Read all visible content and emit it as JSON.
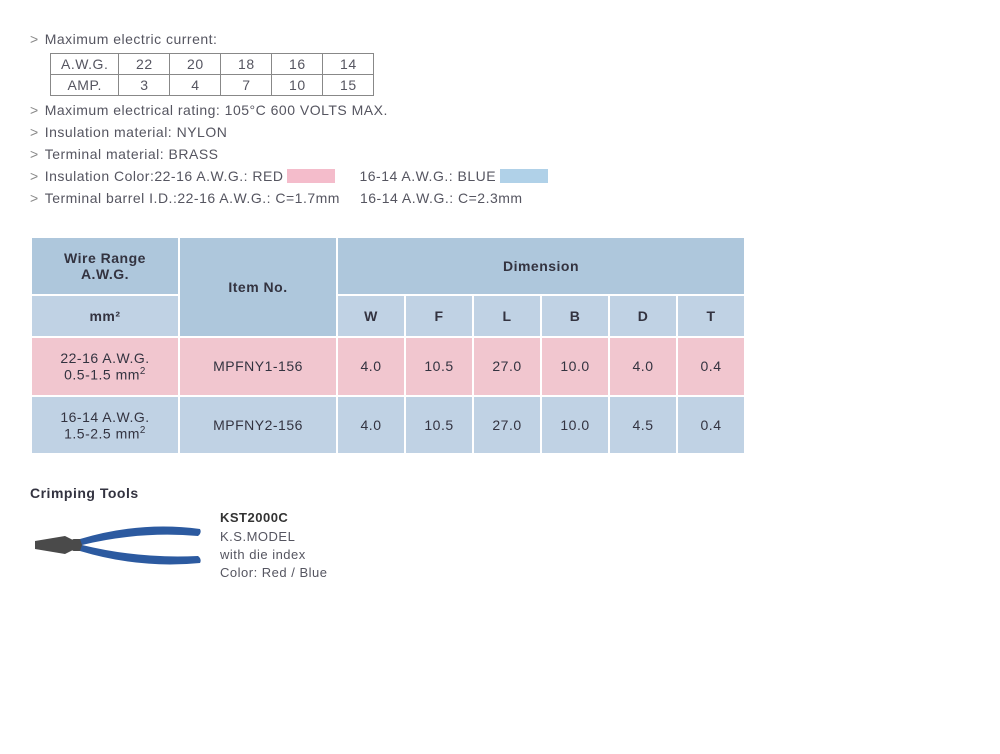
{
  "specs": {
    "max_current_label": "Maximum electric current:",
    "current_table": {
      "row1_label": "A.W.G.",
      "row1": [
        "22",
        "20",
        "18",
        "16",
        "14"
      ],
      "row2_label": "AMP.",
      "row2": [
        "3",
        "4",
        "7",
        "10",
        "15"
      ]
    },
    "rating": "Maximum electrical rating: 105°C 600 VOLTS MAX.",
    "insulation_mat": "Insulation material: NYLON",
    "terminal_mat": "Terminal material: BRASS",
    "ins_color_label": "Insulation Color: ",
    "ins_color_a": "22-16 A.W.G.: RED",
    "ins_color_b": "16-14 A.W.G.: BLUE",
    "swatch_red": "#f4bccb",
    "swatch_blue": "#b0d1e8",
    "barrel_label": "Terminal barrel I.D.: ",
    "barrel_a": "22-16 A.W.G.: C=1.7mm",
    "barrel_b": "16-14 A.W.G.: C=2.3mm"
  },
  "dim": {
    "headers": {
      "wire_range": "Wire Range A.W.G.",
      "item_no": "Item No.",
      "dimension": "Dimension",
      "mm2": "mm²",
      "cols": [
        "W",
        "F",
        "L",
        "B",
        "D",
        "T"
      ]
    },
    "rows": [
      {
        "wr1": "22-16 A.W.G.",
        "wr2": "0.5-1.5 mm²",
        "item": "MPFNY1-156",
        "vals": [
          "4.0",
          "10.5",
          "27.0",
          "10.0",
          "4.0",
          "0.4"
        ],
        "rowClass": "row-pink"
      },
      {
        "wr1": "16-14 A.W.G.",
        "wr2": "1.5-2.5 mm²",
        "item": "MPFNY2-156",
        "vals": [
          "4.0",
          "10.5",
          "27.0",
          "10.0",
          "4.5",
          "0.4"
        ],
        "rowClass": "row-blue"
      }
    ]
  },
  "tools": {
    "title": "Crimping Tools",
    "model": "KST2000C",
    "line1": "K.S.MODEL",
    "line2": "with die index",
    "line3": "Color: Red / Blue",
    "handle_color": "#2c5aa0",
    "jaw_color": "#4a4a4a"
  }
}
